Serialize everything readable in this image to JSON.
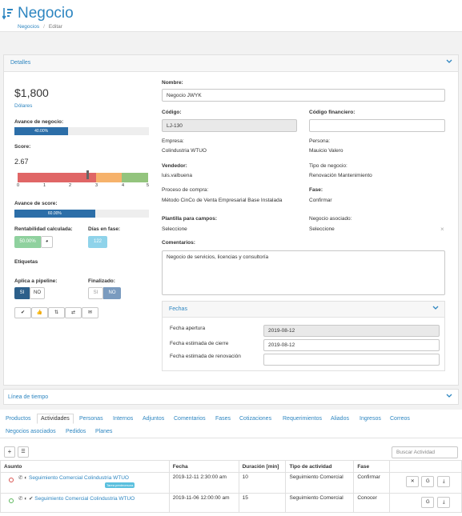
{
  "header": {
    "title": "Negocio",
    "breadcrumb": [
      "Negocios",
      "Editar"
    ]
  },
  "detalles": {
    "section_title": "Detalles",
    "amount": "$1,800",
    "currency": "Dólares",
    "avance_negocio_label": "Avance de negocio:",
    "avance_negocio_value": "40.00%",
    "avance_negocio_fraction": 0.4,
    "score_label": "Score:",
    "score_value": "2.67",
    "score_ticks": [
      "0",
      "1",
      "2",
      "3",
      "4",
      "5"
    ],
    "avance_score_label": "Avance de score:",
    "avance_score_value": "60.00%",
    "avance_score_fraction": 0.6,
    "rentabilidad_label": "Rentabilidad calculada:",
    "rentabilidad_value": "50.00%",
    "dias_label": "Días en fase:",
    "dias_value": "122",
    "etiquetas_label": "Etiquetas",
    "pipeline_label": "Aplica a pipeline:",
    "pipeline_si": "SI",
    "pipeline_no": "NO",
    "finalizado_label": "Finalizado:",
    "finalizado_si": "SI",
    "finalizado_no": "NO",
    "nombre_label": "Nombre:",
    "nombre_value": "Negocio JWYK",
    "codigo_label": "Código:",
    "codigo_value": "LJ-130",
    "codigo_fin_label": "Código financiero:",
    "codigo_fin_value": "",
    "empresa_label": "Empresa:",
    "empresa_value": "Colindustria WTUO",
    "persona_label": "Persona:",
    "persona_value": "Mauicio Valero",
    "vendedor_label": "Vendedor:",
    "vendedor_value": "luis.valbuena",
    "tipo_label": "Tipo de negocio:",
    "tipo_value": "Renovación Mantenimiento",
    "proceso_label": "Proceso de compra:",
    "proceso_value": "Método CinCo de Venta Empresarial Base Instalada",
    "fase_label": "Fase:",
    "fase_value": "Confirmar",
    "plantilla_label": "Plantilla para campos:",
    "plantilla_value": "Seleccione",
    "asociado_label": "Negocio asociado:",
    "asociado_value": "Seleccione",
    "asociado_clear": "×",
    "comentarios_label": "Comentarios:",
    "comentarios_value": "Negocio de servicios, licencias y consultoría"
  },
  "fechas": {
    "title": "Fechas",
    "apertura_label": "Fecha apertura",
    "apertura_value": "2019-08-12",
    "cierre_label": "Fecha estimada de cierre",
    "cierre_value": "2019-08-12",
    "renovacion_label": "Fecha estimada de renovación",
    "renovacion_value": ""
  },
  "timeline": {
    "title": "Línea de tiempo"
  },
  "tabs": [
    "Productos",
    "Actividades",
    "Personas",
    "Internos",
    "Adjuntos",
    "Comentarios",
    "Fases",
    "Cotizaciones",
    "Requerimientos",
    "Aliados",
    "Ingresos",
    "Correos",
    "Negocios asociados",
    "Pedidos",
    "Planes"
  ],
  "activities": {
    "search_placeholder": "Buscar Actividad",
    "add_label": "+",
    "columns": [
      "Asunto",
      "Fecha",
      "Duración [min]",
      "Tipo de actividad",
      "Fase"
    ],
    "rows": [
      {
        "subject": "Seguimiento Comercial Colindustria WTUO",
        "badge": "Tarea predecesora",
        "date": "2019-12-11 2:30:00 am",
        "duration": "10",
        "type": "Seguimiento Comercial",
        "phase": "Confirmar",
        "status_color": "#d9534f"
      },
      {
        "subject": "Seguimiento Comercial Colindustria WTUO",
        "badge": "",
        "date": "2019-11-06 12:00:00 am",
        "duration": "15",
        "type": "Seguimiento Comercial",
        "phase": "Conocer",
        "status_color": "#5cb85c"
      }
    ]
  },
  "colors": {
    "accent": "#2e86c1",
    "bar": "#2c6ea8",
    "teal": "#5bc0de",
    "green": "#5cb85c"
  }
}
